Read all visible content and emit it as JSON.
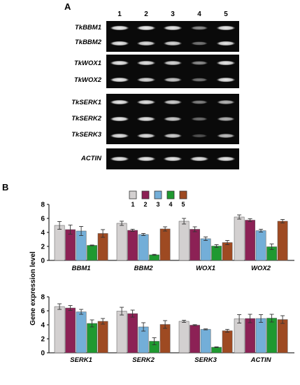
{
  "panel_a": {
    "label": "A",
    "lanes": [
      "1",
      "2",
      "3",
      "4",
      "5"
    ],
    "genes": [
      "TkBBM1",
      "TkBBM2",
      "TkWOX1",
      "TkWOX2",
      "TkSERK1",
      "TkSERK2",
      "TkSERK3",
      "ACTIN"
    ],
    "band_intensity": [
      [
        0.95,
        0.95,
        0.93,
        0.55,
        0.93
      ],
      [
        0.93,
        0.88,
        0.85,
        0.45,
        0.92
      ],
      [
        0.93,
        0.9,
        0.85,
        0.55,
        0.93
      ],
      [
        0.93,
        0.85,
        0.78,
        0.45,
        0.92
      ],
      [
        0.93,
        0.9,
        0.82,
        0.5,
        0.72
      ],
      [
        0.93,
        0.9,
        0.8,
        0.42,
        0.7
      ],
      [
        0.9,
        0.88,
        0.82,
        0.3,
        0.75
      ],
      [
        0.92,
        0.92,
        0.92,
        0.9,
        0.92
      ]
    ]
  },
  "chart_data": {
    "type": "bar",
    "panel_label": "B",
    "ylabel": "Gene expression level",
    "ylim": [
      0,
      8
    ],
    "yticks": [
      "0",
      "2",
      "4",
      "6",
      "8"
    ],
    "grid": false,
    "legend": {
      "entries": [
        "1",
        "2",
        "3",
        "4",
        "5"
      ],
      "colors": [
        "#d3d0d0",
        "#8c2155",
        "#73aed8",
        "#1f9930",
        "#9e4a22"
      ],
      "placement": "top-center"
    },
    "groups": [
      {
        "name": "BBM1",
        "values": [
          5.0,
          4.4,
          4.2,
          2.15,
          3.85
        ],
        "errors": [
          0.55,
          0.65,
          0.65,
          0.05,
          0.55
        ]
      },
      {
        "name": "BBM2",
        "values": [
          5.3,
          4.3,
          3.7,
          0.8,
          4.5
        ],
        "errors": [
          0.3,
          0.15,
          0.15,
          0.07,
          0.3
        ]
      },
      {
        "name": "WOX1",
        "values": [
          5.6,
          4.45,
          3.1,
          2.05,
          2.55
        ],
        "errors": [
          0.4,
          0.35,
          0.25,
          0.2,
          0.3
        ]
      },
      {
        "name": "WOX2",
        "values": [
          6.2,
          5.75,
          4.25,
          1.95,
          5.6
        ],
        "errors": [
          0.3,
          0.2,
          0.2,
          0.4,
          0.25
        ]
      },
      {
        "name": "SERK1",
        "values": [
          6.6,
          6.4,
          5.85,
          4.2,
          4.5
        ],
        "errors": [
          0.4,
          0.35,
          0.35,
          0.5,
          0.4
        ]
      },
      {
        "name": "SERK2",
        "values": [
          5.95,
          5.6,
          3.7,
          1.65,
          4.05
        ],
        "errors": [
          0.55,
          0.5,
          0.6,
          0.5,
          0.55
        ]
      },
      {
        "name": "SERK3",
        "values": [
          4.5,
          3.95,
          3.35,
          0.8,
          3.15
        ],
        "errors": [
          0.15,
          0.07,
          0.07,
          0.05,
          0.2
        ]
      },
      {
        "name": "ACTIN",
        "values": [
          4.85,
          4.9,
          4.9,
          4.95,
          4.75
        ],
        "errors": [
          0.6,
          0.6,
          0.55,
          0.55,
          0.55
        ]
      }
    ]
  }
}
